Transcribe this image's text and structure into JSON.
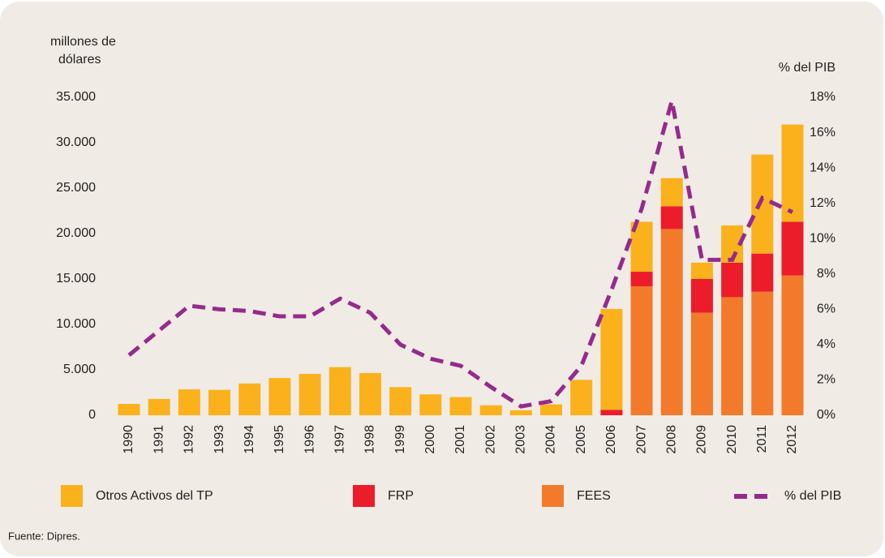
{
  "chart_data": {
    "type": "bar",
    "ylabel": [
      "millones de",
      "dólares"
    ],
    "y2label": "% del PIB",
    "source": "Fuente: Dipres.",
    "categories": [
      "1990",
      "1991",
      "1992",
      "1993",
      "1994",
      "1995",
      "1996",
      "1997",
      "1998",
      "1999",
      "2000",
      "2001",
      "2002",
      "2003",
      "2004",
      "2005",
      "2006",
      "2007",
      "2008",
      "2009",
      "2010",
      "2011",
      "2012"
    ],
    "series": [
      {
        "name": "Otros Activos del TP",
        "color": "#fbb11c",
        "values": [
          1250,
          1800,
          2850,
          2800,
          3500,
          4100,
          4550,
          5300,
          4650,
          3100,
          2300,
          2000,
          1100,
          550,
          1200,
          3900,
          11100,
          5500,
          3100,
          1800,
          4100,
          10900,
          10700
        ]
      },
      {
        "name": "FRP",
        "color": "#ec1c2b",
        "values": [
          0,
          0,
          0,
          0,
          0,
          0,
          0,
          0,
          0,
          0,
          0,
          0,
          0,
          0,
          0,
          0,
          600,
          1600,
          2500,
          3700,
          3800,
          4200,
          5900
        ]
      },
      {
        "name": "FEES",
        "color": "#f37a2a",
        "values": [
          0,
          0,
          0,
          0,
          0,
          0,
          0,
          0,
          0,
          0,
          0,
          0,
          0,
          0,
          0,
          0,
          0,
          14200,
          20500,
          11300,
          13000,
          13600,
          15400
        ]
      },
      {
        "name": "% del PIB",
        "color": "#952a8d",
        "type": "line",
        "axis": "y2",
        "values": [
          3.4,
          4.8,
          6.2,
          6.0,
          5.9,
          5.6,
          5.6,
          6.6,
          5.8,
          4.0,
          3.2,
          2.8,
          1.6,
          0.5,
          0.8,
          2.8,
          7.1,
          11.7,
          17.8,
          8.8,
          8.8,
          12.3,
          11.5
        ]
      }
    ],
    "stack_order": [
      "FEES",
      "FRP",
      "Otros Activos del TP"
    ],
    "ylim": [
      0,
      35000
    ],
    "yticks": [
      0,
      {
        "value": 5000,
        "label": "5.000"
      },
      {
        "value": 10000,
        "label": "10.000"
      },
      {
        "value": 15000,
        "label": "15.000"
      },
      {
        "value": 20000,
        "label": "20.000"
      },
      {
        "value": 25000,
        "label": "25.000"
      },
      {
        "value": 30000,
        "label": "30.000"
      },
      {
        "value": 35000,
        "label": "35.000"
      }
    ],
    "y2lim": [
      0,
      18
    ],
    "y2ticks": [
      {
        "value": 0,
        "label": "0%"
      },
      {
        "value": 2,
        "label": "2%"
      },
      {
        "value": 4,
        "label": "4%"
      },
      {
        "value": 6,
        "label": "6%"
      },
      {
        "value": 8,
        "label": "8%"
      },
      {
        "value": 10,
        "label": "10%"
      },
      {
        "value": 12,
        "label": "12%"
      },
      {
        "value": 14,
        "label": "14%"
      },
      {
        "value": 16,
        "label": "16%"
      },
      {
        "value": 18,
        "label": "18%"
      }
    ]
  }
}
